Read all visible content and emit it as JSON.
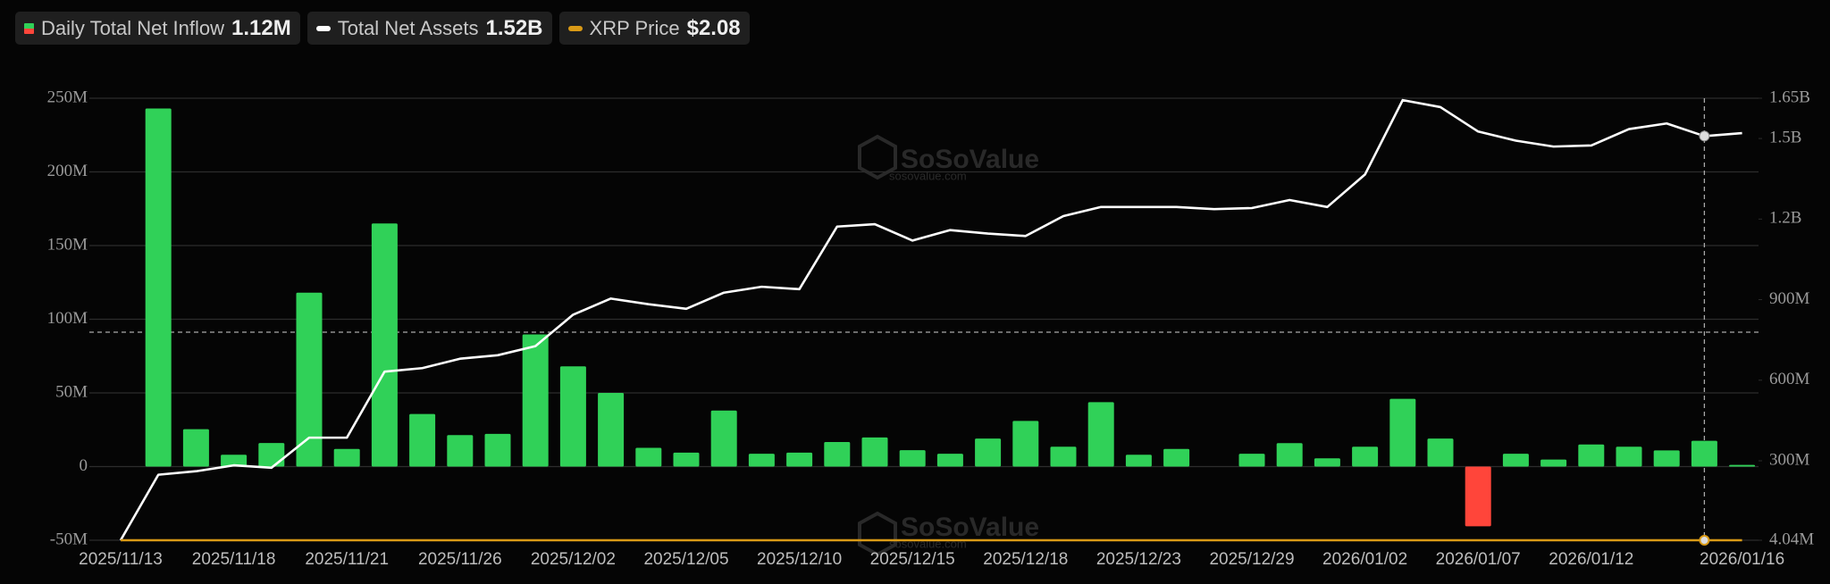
{
  "chart_data": {
    "type": "bar",
    "categories": [
      "2025/11/13",
      null,
      null,
      "2025/11/18",
      null,
      null,
      "2025/11/21",
      null,
      null,
      "2025/11/26",
      null,
      null,
      "2025/12/02",
      null,
      null,
      "2025/12/05",
      null,
      null,
      "2025/12/10",
      null,
      null,
      "2025/12/15",
      null,
      null,
      "2025/12/18",
      null,
      null,
      "2025/12/23",
      null,
      null,
      "2025/12/29",
      null,
      null,
      "2026/01/02",
      null,
      null,
      "2026/01/07",
      null,
      null,
      "2026/01/12",
      null,
      null,
      null,
      "2026/01/16"
    ],
    "series": [
      {
        "name": "Daily Total Net Inflow",
        "type": "bar",
        "color": "#30d158",
        "negative_color": "#ff453a",
        "latest_label": "1.12M",
        "values": [
          null,
          243000000,
          25400000,
          8000000,
          16000000,
          118000000,
          12000000,
          165000000,
          35700000,
          21400000,
          22200000,
          89700000,
          68000000,
          50000000,
          12700000,
          9500000,
          38000000,
          8700000,
          9500000,
          16700000,
          19800000,
          11100000,
          8700000,
          19000000,
          31000000,
          13500000,
          43700000,
          8000000,
          12000000,
          0,
          8700000,
          15900000,
          5600000,
          13500000,
          46000000,
          19000000,
          -40500000,
          8700000,
          4800000,
          15000000,
          13500000,
          11000000,
          17500000,
          1120000
        ]
      },
      {
        "name": "Total Net Assets",
        "type": "line",
        "axis": "y2",
        "color": "#ffffff",
        "latest_label": "1.52B",
        "values": [
          4040000,
          248000000,
          261000000,
          283000000,
          274000000,
          386000000,
          386000000,
          632000000,
          645000000,
          680000000,
          693000000,
          727000000,
          844000000,
          904000000,
          883000000,
          866000000,
          926000000,
          948000000,
          939000000,
          1172000000,
          1181000000,
          1120000000,
          1159000000,
          1146000000,
          1137000000,
          1211000000,
          1245000000,
          1245000000,
          1245000000,
          1237000000,
          1241000000,
          1271000000,
          1245000000,
          1366000000,
          1643000000,
          1617000000,
          1526000000,
          1492000000,
          1470000000,
          1474000000,
          1535000000,
          1556000000,
          1509000000,
          1520000000
        ]
      },
      {
        "name": "XRP Price",
        "type": "price",
        "color": "#d99a16",
        "latest_label": "$2.08"
      }
    ],
    "ylim": [
      -50000000,
      250000000
    ],
    "yticks": [
      {
        "value": -50000000,
        "label": "-50M"
      },
      0,
      {
        "value": 50000000,
        "label": "50M"
      },
      {
        "value": 100000000,
        "label": "100M"
      },
      {
        "value": 150000000,
        "label": "150M"
      },
      {
        "value": 200000000,
        "label": "200M"
      },
      {
        "value": 250000000,
        "label": "250M"
      }
    ],
    "y2lim": [
      4040000,
      1650000000
    ],
    "y2ticks": [
      {
        "value": 4040000,
        "label": "4.04M"
      },
      {
        "value": 300000000,
        "label": "300M"
      },
      {
        "value": 600000000,
        "label": "600M"
      },
      {
        "value": 900000000,
        "label": "900M"
      },
      {
        "value": 1200000000,
        "label": "1.2B"
      },
      {
        "value": 1500000000,
        "label": "1.5B"
      },
      {
        "value": 1650000000,
        "label": "1.65B"
      }
    ],
    "grid": true,
    "watermark": "SoSoValue",
    "watermark_url": "sosovalue.com"
  }
}
